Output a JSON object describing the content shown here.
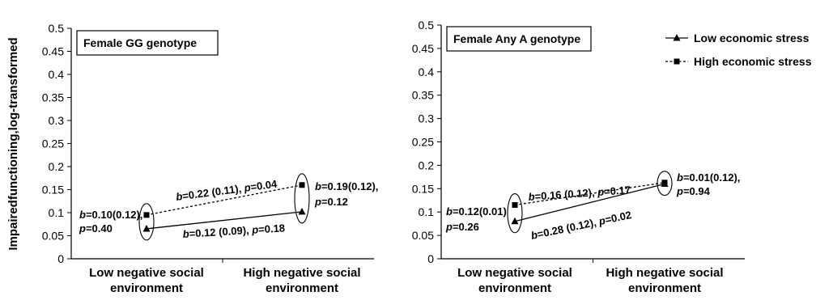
{
  "chart_data": [
    {
      "type": "line",
      "title": "Female GG genotype",
      "ylabel": "Impairedfunctioning,log-transformed",
      "categories": [
        "Low negative social environment",
        "High negative social environment"
      ],
      "category_lines": [
        [
          "Low negative social",
          "environment"
        ],
        [
          "High negative social",
          "environment"
        ]
      ],
      "ylim": [
        0,
        0.5
      ],
      "yticks": [
        "0",
        "0.05",
        "0.1",
        "0.15",
        "0.2",
        "0.25",
        "0.3",
        "0.35",
        "0.4",
        "0.45",
        "0.5"
      ],
      "series": [
        {
          "name": "Low economic stress",
          "values": [
            0.065,
            0.102
          ],
          "marker": "triangle",
          "dash": false
        },
        {
          "name": "High economic stress",
          "values": [
            0.095,
            0.16
          ],
          "marker": "square",
          "dash": true
        }
      ],
      "annotations": {
        "left": [
          "b=0.10(0.12),",
          "p=0.40"
        ],
        "right": [
          "b=0.19(0.12),",
          "p=0.12"
        ],
        "slope_high": "b=0.22 (0.11), p=0.04",
        "slope_low": "b=0.12 (0.09), p=0.18"
      },
      "grid": false
    },
    {
      "type": "line",
      "title": "Female Any A genotype",
      "ylabel": "",
      "categories": [
        "Low negative social environment",
        "High negative social environment"
      ],
      "category_lines": [
        [
          "Low negative social",
          "environment"
        ],
        [
          "High negative social",
          "environment"
        ]
      ],
      "ylim": [
        0,
        0.5
      ],
      "yticks": [
        "0",
        "0.05",
        "0.1",
        "0.15",
        "0.2",
        "0.25",
        "0.3",
        "0.35",
        "0.4",
        "0.45",
        "0.5"
      ],
      "series": [
        {
          "name": "Low economic stress",
          "values": [
            0.08,
            0.16
          ],
          "marker": "triangle",
          "dash": false
        },
        {
          "name": "High economic stress",
          "values": [
            0.115,
            0.163
          ],
          "marker": "square",
          "dash": true
        }
      ],
      "annotations": {
        "left": [
          "b=0.12(0.01)",
          "p=0.26"
        ],
        "right": [
          "b=0.01(0.12),",
          "p=0.94"
        ],
        "slope_high": "b=0.16 (0.12), p=0.17",
        "slope_low": "b=0.28 (0.12), p=0.02"
      },
      "legend": {
        "position": "top-right",
        "items": [
          "Low economic stress",
          "High economic stress"
        ]
      },
      "grid": false
    }
  ]
}
